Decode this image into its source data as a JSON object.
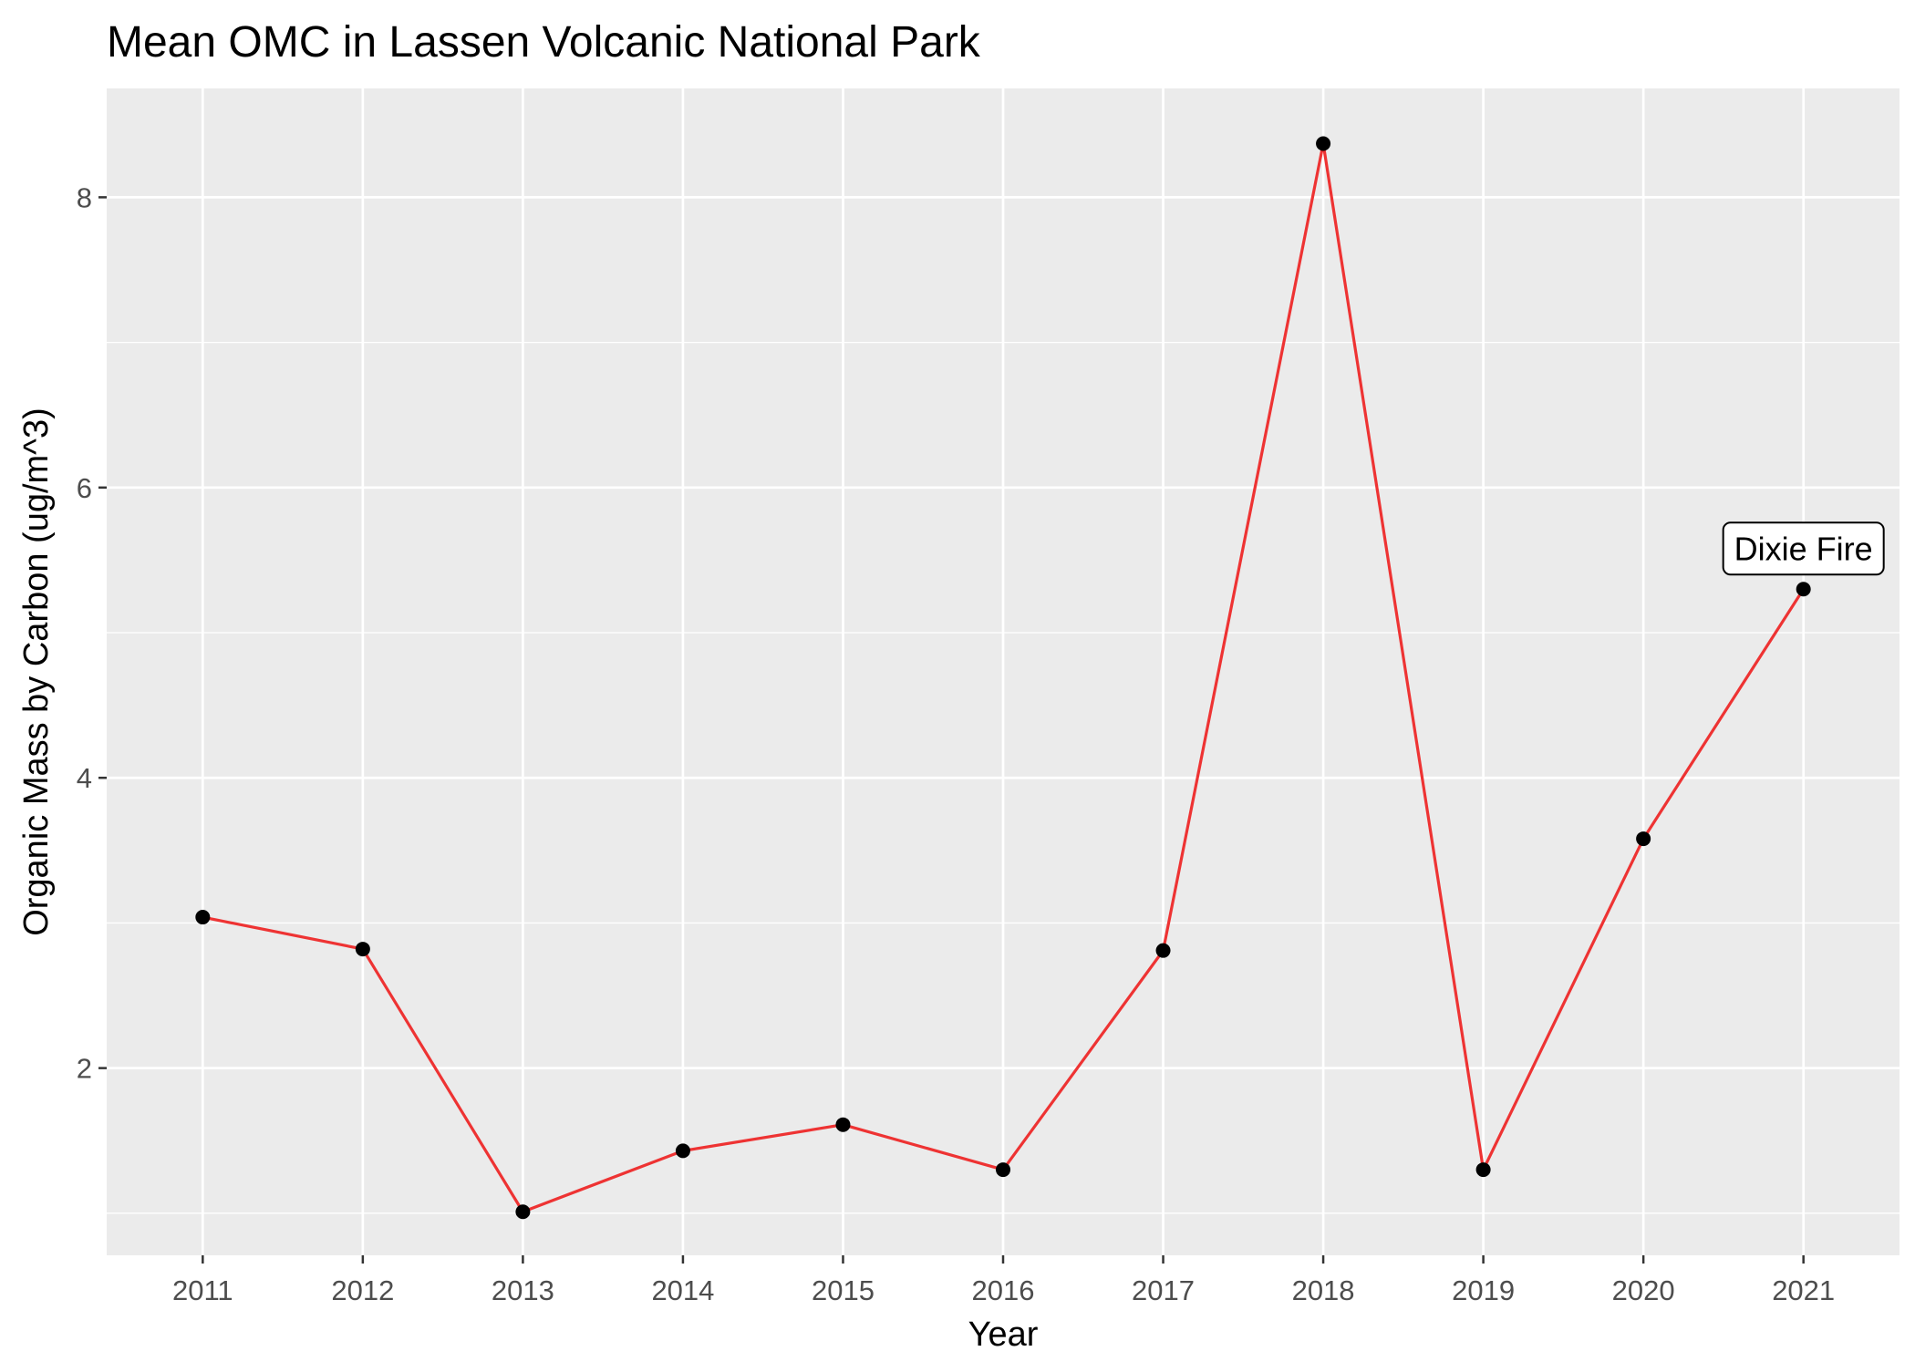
{
  "chart_data": {
    "type": "line",
    "title": "Mean OMC in Lassen Volcanic National Park",
    "xlabel": "Year",
    "ylabel": "Organic Mass by Carbon (ug/m^3)",
    "x": [
      2011,
      2012,
      2013,
      2014,
      2015,
      2016,
      2017,
      2018,
      2019,
      2020,
      2021
    ],
    "values": [
      3.04,
      2.82,
      1.01,
      1.43,
      1.61,
      1.3,
      2.81,
      8.37,
      1.3,
      3.58,
      5.3
    ],
    "xlim": [
      2010.4,
      2021.6
    ],
    "ylim": [
      0.71,
      8.75
    ],
    "yticks": [
      2,
      4,
      6,
      8
    ],
    "grid": true,
    "line_color": "#ee3333",
    "point_color": "#000000",
    "panel_background": "#ebebeb",
    "annotations": [
      {
        "x": 2021,
        "y": 5.3,
        "text": "Dixie Fire"
      }
    ]
  }
}
